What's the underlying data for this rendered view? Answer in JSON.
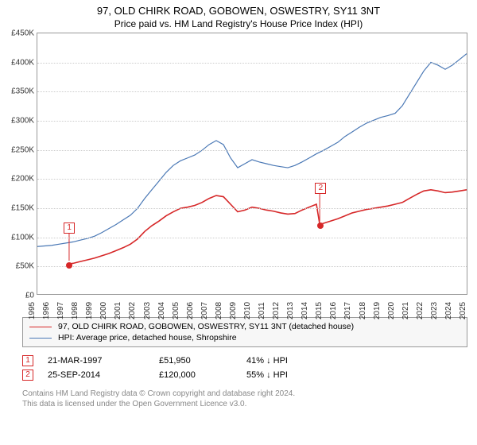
{
  "title": "97, OLD CHIRK ROAD, GOBOWEN, OSWESTRY, SY11 3NT",
  "subtitle": "Price paid vs. HM Land Registry's House Price Index (HPI)",
  "chart": {
    "type": "line",
    "background_color": "#ffffff",
    "grid_color": "#cccccc",
    "border_color": "#999999",
    "x": {
      "min": 1995,
      "max": 2025,
      "step": 1
    },
    "y": {
      "min": 0,
      "max": 450000,
      "step": 50000,
      "prefix": "£",
      "suffix": "K",
      "divisor": 1000
    },
    "series": [
      {
        "id": "property",
        "label": "97, OLD CHIRK ROAD, GOBOWEN, OSWESTRY, SY11 3NT (detached house)",
        "color": "#d62728",
        "width": 1.6,
        "points": [
          [
            1997.22,
            51950
          ],
          [
            1997.5,
            53000
          ],
          [
            1998,
            56000
          ],
          [
            1998.5,
            59000
          ],
          [
            1999,
            62000
          ],
          [
            1999.5,
            66000
          ],
          [
            2000,
            70000
          ],
          [
            2000.5,
            75000
          ],
          [
            2001,
            80000
          ],
          [
            2001.5,
            86000
          ],
          [
            2002,
            95000
          ],
          [
            2002.5,
            108000
          ],
          [
            2003,
            118000
          ],
          [
            2003.5,
            126000
          ],
          [
            2004,
            135000
          ],
          [
            2004.5,
            142000
          ],
          [
            2005,
            148000
          ],
          [
            2005.5,
            150000
          ],
          [
            2006,
            153000
          ],
          [
            2006.5,
            158000
          ],
          [
            2007,
            165000
          ],
          [
            2007.5,
            170000
          ],
          [
            2008,
            168000
          ],
          [
            2008.5,
            155000
          ],
          [
            2009,
            142000
          ],
          [
            2009.5,
            145000
          ],
          [
            2010,
            150000
          ],
          [
            2010.5,
            148000
          ],
          [
            2011,
            145000
          ],
          [
            2011.5,
            143000
          ],
          [
            2012,
            140000
          ],
          [
            2012.5,
            138000
          ],
          [
            2013,
            139000
          ],
          [
            2013.5,
            145000
          ],
          [
            2014,
            150000
          ],
          [
            2014.5,
            155000
          ],
          [
            2014.73,
            120000
          ],
          [
            2015,
            122000
          ],
          [
            2015.5,
            126000
          ],
          [
            2016,
            130000
          ],
          [
            2016.5,
            135000
          ],
          [
            2017,
            140000
          ],
          [
            2017.5,
            143000
          ],
          [
            2018,
            146000
          ],
          [
            2018.5,
            148000
          ],
          [
            2019,
            150000
          ],
          [
            2019.5,
            152000
          ],
          [
            2020,
            155000
          ],
          [
            2020.5,
            158000
          ],
          [
            2021,
            165000
          ],
          [
            2021.5,
            172000
          ],
          [
            2022,
            178000
          ],
          [
            2022.5,
            180000
          ],
          [
            2023,
            178000
          ],
          [
            2023.5,
            175000
          ],
          [
            2024,
            176000
          ],
          [
            2024.5,
            178000
          ],
          [
            2025,
            180000
          ]
        ]
      },
      {
        "id": "hpi",
        "label": "HPI: Average price, detached house, Shropshire",
        "color": "#4a78b5",
        "width": 1.2,
        "points": [
          [
            1995,
            82000
          ],
          [
            1995.5,
            83000
          ],
          [
            1996,
            84000
          ],
          [
            1996.5,
            86000
          ],
          [
            1997,
            88000
          ],
          [
            1997.5,
            90000
          ],
          [
            1998,
            93000
          ],
          [
            1998.5,
            96000
          ],
          [
            1999,
            100000
          ],
          [
            1999.5,
            106000
          ],
          [
            2000,
            113000
          ],
          [
            2000.5,
            120000
          ],
          [
            2001,
            128000
          ],
          [
            2001.5,
            136000
          ],
          [
            2002,
            148000
          ],
          [
            2002.5,
            165000
          ],
          [
            2003,
            180000
          ],
          [
            2003.5,
            195000
          ],
          [
            2004,
            210000
          ],
          [
            2004.5,
            222000
          ],
          [
            2005,
            230000
          ],
          [
            2005.5,
            235000
          ],
          [
            2006,
            240000
          ],
          [
            2006.5,
            248000
          ],
          [
            2007,
            258000
          ],
          [
            2007.5,
            265000
          ],
          [
            2008,
            258000
          ],
          [
            2008.5,
            235000
          ],
          [
            2009,
            218000
          ],
          [
            2009.5,
            225000
          ],
          [
            2010,
            232000
          ],
          [
            2010.5,
            228000
          ],
          [
            2011,
            225000
          ],
          [
            2011.5,
            222000
          ],
          [
            2012,
            220000
          ],
          [
            2012.5,
            218000
          ],
          [
            2013,
            222000
          ],
          [
            2013.5,
            228000
          ],
          [
            2014,
            235000
          ],
          [
            2014.5,
            242000
          ],
          [
            2015,
            248000
          ],
          [
            2015.5,
            255000
          ],
          [
            2016,
            262000
          ],
          [
            2016.5,
            272000
          ],
          [
            2017,
            280000
          ],
          [
            2017.5,
            288000
          ],
          [
            2018,
            295000
          ],
          [
            2018.5,
            300000
          ],
          [
            2019,
            305000
          ],
          [
            2019.5,
            308000
          ],
          [
            2020,
            312000
          ],
          [
            2020.5,
            325000
          ],
          [
            2021,
            345000
          ],
          [
            2021.5,
            365000
          ],
          [
            2022,
            385000
          ],
          [
            2022.5,
            400000
          ],
          [
            2023,
            395000
          ],
          [
            2023.5,
            388000
          ],
          [
            2024,
            395000
          ],
          [
            2024.5,
            405000
          ],
          [
            2025,
            415000
          ]
        ]
      }
    ],
    "markers": [
      {
        "n": "1",
        "x": 1997.22,
        "y": 51950,
        "color": "#d62728"
      },
      {
        "n": "2",
        "x": 2014.73,
        "y": 120000,
        "color": "#d62728"
      }
    ]
  },
  "legend": {
    "background": "#f7f7f7",
    "border": "#999999"
  },
  "transactions": {
    "hpi_label": "HPI",
    "rows": [
      {
        "n": "1",
        "color": "#d62728",
        "date": "21-MAR-1997",
        "price": "£51,950",
        "pct": "41%",
        "arrow": "↓"
      },
      {
        "n": "2",
        "color": "#d62728",
        "date": "25-SEP-2014",
        "price": "£120,000",
        "pct": "55%",
        "arrow": "↓"
      }
    ]
  },
  "credits": {
    "line1": "Contains HM Land Registry data © Crown copyright and database right 2024.",
    "line2": "This data is licensed under the Open Government Licence v3.0."
  }
}
